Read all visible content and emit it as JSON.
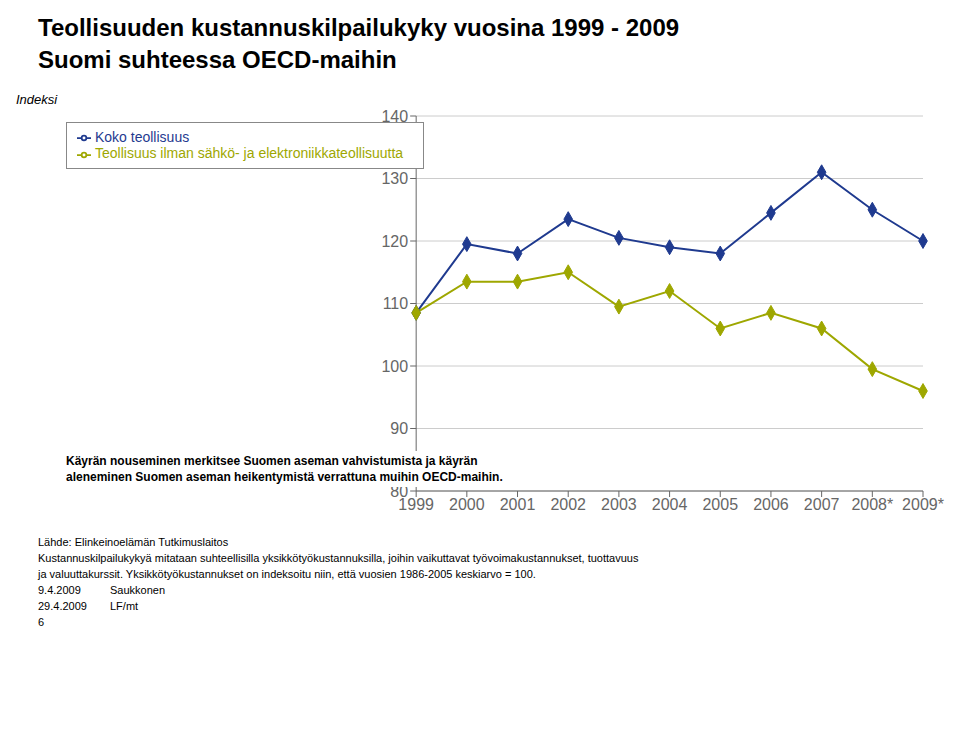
{
  "chart_data": {
    "type": "line",
    "title": "Teollisuuden kustannuskilpailukyky vuosina 1999 - 2009",
    "subtitle": "Suomi suhteessa OECD-maihin",
    "y_label": "Indeksi",
    "categories": [
      "1999",
      "2000",
      "2001",
      "2002",
      "2003",
      "2004",
      "2005",
      "2006",
      "2007",
      "2008*",
      "2009*"
    ],
    "series": [
      {
        "name": "Koko teollisuus",
        "color": "#1F3A8F",
        "marker": "diamond",
        "values": [
          108.5,
          119.5,
          118.0,
          123.5,
          120.5,
          119.0,
          118.0,
          124.5,
          131.0,
          125.0,
          120.0
        ]
      },
      {
        "name": "Teollisuus ilman sähkö- ja elektroniikkateollisuutta",
        "color": "#9EA700",
        "marker": "diamond",
        "values": [
          108.5,
          113.5,
          113.5,
          115.0,
          109.5,
          112.0,
          106.0,
          108.5,
          106.0,
          99.5,
          96.0
        ]
      }
    ],
    "ylim": [
      80,
      140
    ],
    "yticks": [
      80,
      90,
      100,
      110,
      120,
      130,
      140
    ],
    "grid": true,
    "legend": "upper left",
    "annotations": [
      "Käyrän nouseminen merkitsee Suomen aseman vahvistumista ja käyrän",
      "aleneminen Suomen aseman heikentymistä verrattuna muihin OECD-maihin."
    ],
    "footer": [
      "Lähde: Elinkeinoelämän Tutkimuslaitos",
      "Kustannuskilpailukykyä mitataan suhteellisilla yksikkötyökustannuksilla, joihin vaikuttavat työvoimakustannukset, tuottavuus",
      "ja valuuttakurssit. Yksikkötyökustannukset on indeksoitu niin, että vuosien 1986-2005 keskiarvo = 100."
    ],
    "footer_rows": [
      [
        "9.4.2009",
        "Saukkonen"
      ],
      [
        "29.4.2009",
        "LF/mt"
      ],
      [
        "6"
      ]
    ]
  }
}
